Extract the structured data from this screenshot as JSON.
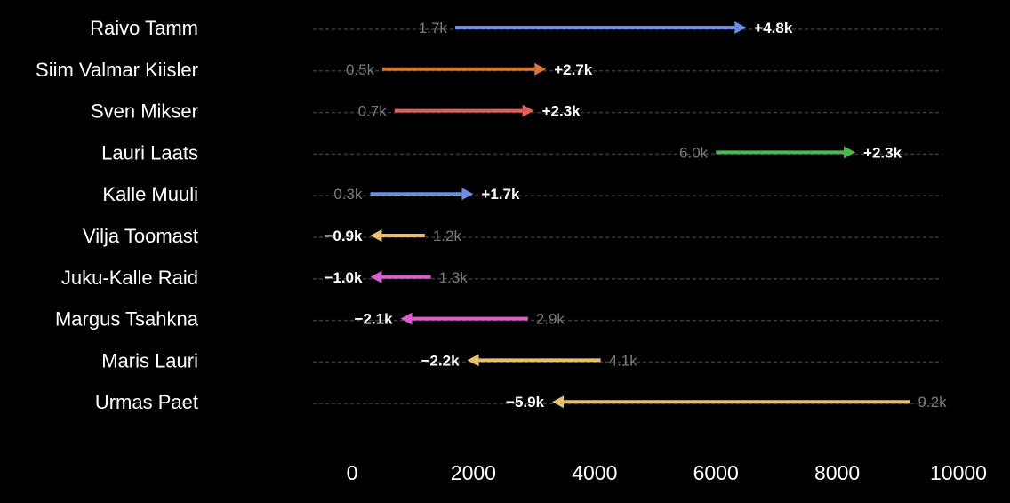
{
  "chart_data": {
    "type": "arrow",
    "xlim": [
      0,
      10000
    ],
    "x_ticks": [
      "0",
      "2000",
      "4000",
      "6000",
      "8000",
      "10000"
    ],
    "grid": false,
    "colors": {
      "background": "#000000",
      "blue": "#6a8fe0",
      "orange": "#d4773a",
      "red": "#e0605a",
      "green": "#4cb84c",
      "yellow": "#e8c070",
      "magenta": "#d860d0"
    },
    "rows": [
      {
        "name": "Raivo Tamm",
        "start": 1700,
        "end": 6500,
        "start_label": "1.7k",
        "delta_label": "+4.8k",
        "color": "#6a8fe0"
      },
      {
        "name": "Siim Valmar Kiisler",
        "start": 500,
        "end": 3200,
        "start_label": "0.5k",
        "delta_label": "+2.7k",
        "color": "#d4773a"
      },
      {
        "name": "Sven Mikser",
        "start": 700,
        "end": 3000,
        "start_label": "0.7k",
        "delta_label": "+2.3k",
        "color": "#e0605a"
      },
      {
        "name": "Lauri Laats",
        "start": 6000,
        "end": 8300,
        "start_label": "6.0k",
        "delta_label": "+2.3k",
        "color": "#4cb84c"
      },
      {
        "name": "Kalle Muuli",
        "start": 300,
        "end": 2000,
        "start_label": "0.3k",
        "delta_label": "+1.7k",
        "color": "#6a8fe0"
      },
      {
        "name": "Vilja Toomast",
        "start": 1200,
        "end": 300,
        "start_label": "1.2k",
        "delta_label": "−0.9k",
        "color": "#e8c070"
      },
      {
        "name": "Juku-Kalle Raid",
        "start": 1300,
        "end": 300,
        "start_label": "1.3k",
        "delta_label": "−1.0k",
        "color": "#d860d0"
      },
      {
        "name": "Margus Tsahkna",
        "start": 2900,
        "end": 800,
        "start_label": "2.9k",
        "delta_label": "−2.1k",
        "color": "#d860d0"
      },
      {
        "name": "Maris Lauri",
        "start": 4100,
        "end": 1900,
        "start_label": "4.1k",
        "delta_label": "−2.2k",
        "color": "#e8c070"
      },
      {
        "name": "Urmas Paet",
        "start": 9200,
        "end": 3300,
        "start_label": "9.2k",
        "delta_label": "−5.9k",
        "color": "#e8c070"
      }
    ]
  }
}
